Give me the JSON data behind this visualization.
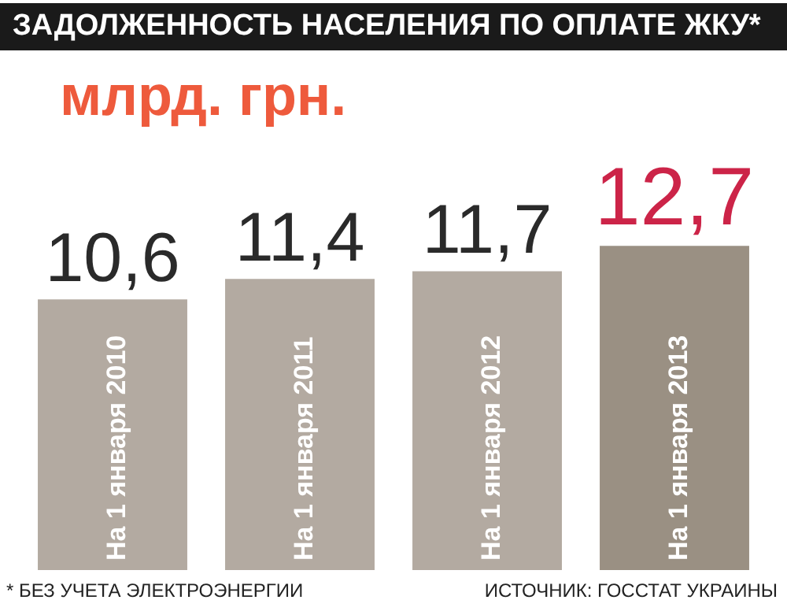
{
  "chart_data": {
    "type": "bar",
    "title": "ЗАДОЛЖЕННОСТЬ НАСЕЛЕНИЯ ПО ОПЛАТЕ ЖКУ*",
    "subtitle": "млрд. грн.",
    "categories": [
      "На 1 января 2010",
      "На 1 января 2011",
      "На 1 января 2012",
      "На 1 января 2013"
    ],
    "values": [
      10.6,
      11.4,
      11.7,
      12.7
    ],
    "colors": [
      "#b3aaa1",
      "#b3aaa1",
      "#b3aaa1",
      "#9a9083"
    ],
    "value_labels": [
      "10,6",
      "11,4",
      "11,7",
      "12,7"
    ],
    "annotations": [
      "* БЕЗ УЧЕТА ЭЛЕКТРОЭНЕРГИИ",
      "ИСТОЧНИК: ГОССТАТ УКРАИНЫ"
    ]
  }
}
